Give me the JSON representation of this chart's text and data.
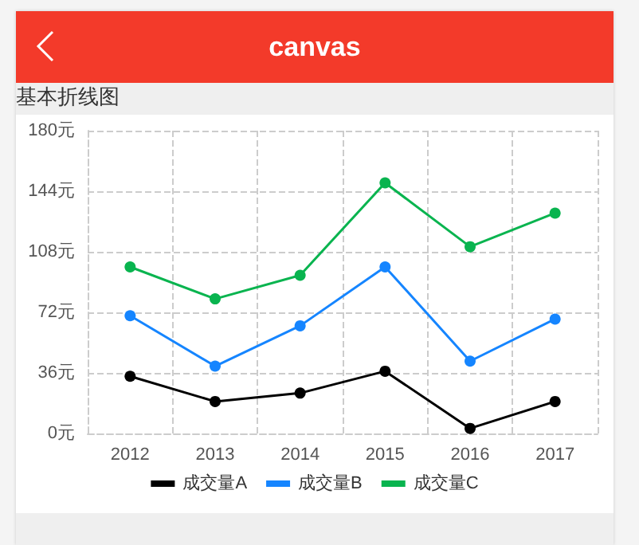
{
  "chart_data": {
    "type": "line",
    "title": "canvas",
    "subtitle": "基本折线图",
    "categories": [
      "2012",
      "2013",
      "2014",
      "2015",
      "2016",
      "2017"
    ],
    "series": [
      {
        "name": "成交量A",
        "color": "#000000",
        "values": [
          34,
          19,
          24,
          37,
          3,
          19
        ]
      },
      {
        "name": "成交量B",
        "color": "#1585ff",
        "values": [
          70,
          40,
          64,
          99,
          43,
          68
        ]
      },
      {
        "name": "成交量C",
        "color": "#09b44f",
        "values": [
          99,
          80,
          94,
          149,
          111,
          131
        ]
      }
    ],
    "ylim": [
      0,
      180
    ],
    "yticks": [
      {
        "value": 0,
        "label": "0元"
      },
      {
        "value": 36,
        "label": "36元"
      },
      {
        "value": 72,
        "label": "72元"
      },
      {
        "value": 108,
        "label": "108元"
      },
      {
        "value": 144,
        "label": "144元"
      },
      {
        "value": 180,
        "label": "180元"
      }
    ],
    "grid": true,
    "legend": "bottom",
    "marker": "circle",
    "line_style": "solid"
  }
}
